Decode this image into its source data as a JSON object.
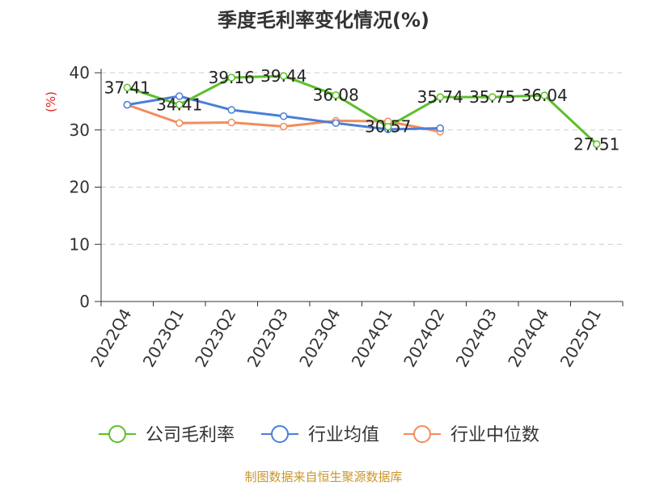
{
  "chart_data": {
    "type": "line",
    "title": "季度毛利率变化情况(%)",
    "ylabel": "(%)",
    "xlabel": "",
    "ylim": [
      0,
      40
    ],
    "yticks": [
      0,
      10,
      20,
      30,
      40
    ],
    "grid": true,
    "legend_position": "bottom",
    "categories": [
      "2022Q4",
      "2023Q1",
      "2023Q2",
      "2023Q3",
      "2023Q4",
      "2024Q1",
      "2024Q2",
      "2024Q3",
      "2024Q4",
      "2025Q1"
    ],
    "series": [
      {
        "name": "公司毛利率",
        "color": "#5dbf2a",
        "values": [
          37.41,
          34.41,
          39.16,
          39.44,
          36.08,
          30.57,
          35.74,
          35.75,
          36.04,
          27.51
        ],
        "labels": [
          "37.41",
          "34.41",
          "39.16",
          "39.44",
          "36.08",
          "30.57",
          "35.74",
          "35.75",
          "36.04",
          "27.51"
        ]
      },
      {
        "name": "行业均值",
        "color": "#4a7fd8",
        "values": [
          34.4,
          35.9,
          33.5,
          32.4,
          31.2,
          30.1,
          30.3,
          null,
          null,
          null
        ]
      },
      {
        "name": "行业中位数",
        "color": "#f28c5c",
        "values": [
          34.4,
          31.2,
          31.3,
          30.6,
          31.6,
          31.5,
          29.7,
          null,
          null,
          null
        ]
      }
    ],
    "source": "制图数据来自恒生聚源数据库",
    "ylabel_color": "#e02020",
    "source_color": "#c8962c"
  }
}
